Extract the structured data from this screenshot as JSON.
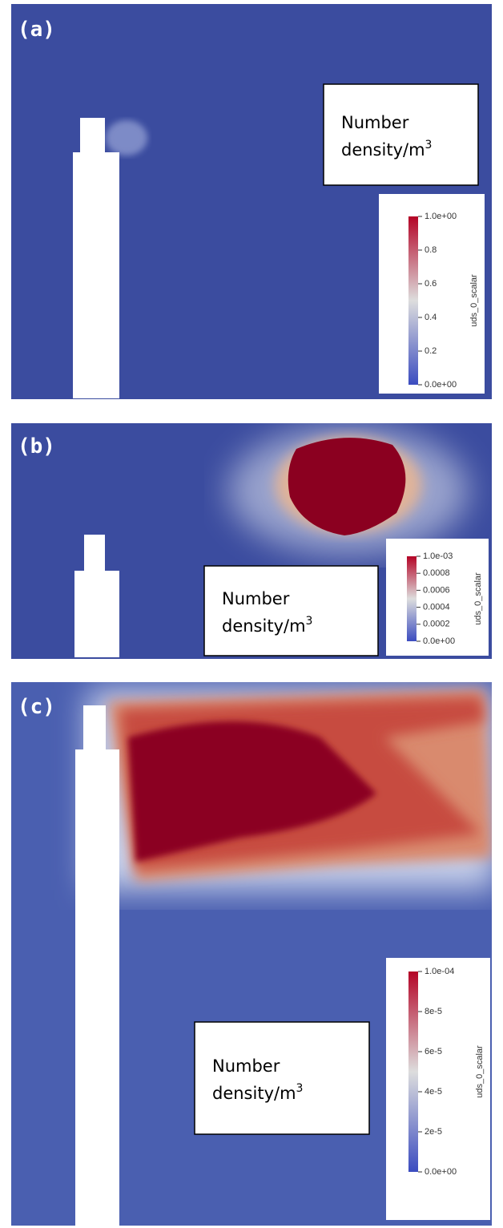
{
  "panels": [
    {
      "label": "(a)",
      "box_lines": [
        "Number",
        "density/m"
      ],
      "box_superscript": "3",
      "colorbar": {
        "title": "uds_0_scalar",
        "tick_labels": [
          "1.0e+00",
          "0.8",
          "0.6",
          "0.4",
          "0.2",
          "0.0e+00"
        ]
      }
    },
    {
      "label": "(b)",
      "box_lines": [
        "Number",
        "density/m"
      ],
      "box_superscript": "3",
      "colorbar": {
        "title": "uds_0_scalar",
        "tick_labels": [
          "1.0e-03",
          "0.0008",
          "0.0006",
          "0.0004",
          "0.0002",
          "0.0e+00"
        ]
      }
    },
    {
      "label": "(c)",
      "box_lines": [
        "Number",
        "density/m"
      ],
      "box_superscript": "3",
      "colorbar": {
        "title": "uds_0_scalar",
        "tick_labels": [
          "1.0e-04",
          "8e-5",
          "6e-5",
          "4e-5",
          "2e-5",
          "0.0e+00"
        ]
      }
    }
  ]
}
